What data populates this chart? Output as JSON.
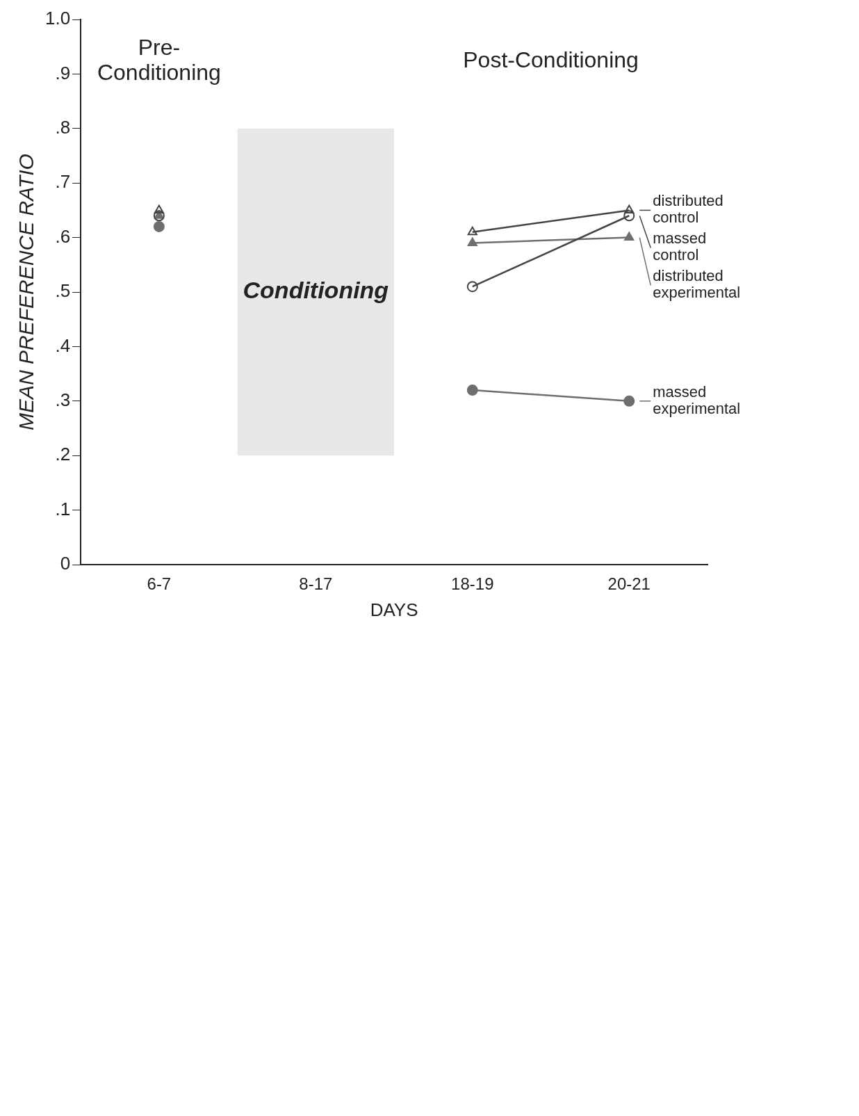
{
  "chart_data": {
    "type": "line",
    "xlabel": "DAYS",
    "ylabel": "MEAN PREFERENCE RATIO",
    "categories": [
      "6-7",
      "8-17",
      "18-19",
      "20-21"
    ],
    "ylim": [
      0,
      1
    ],
    "yticks": [
      {
        "value": 0,
        "label": "0"
      },
      {
        "value": 0.1,
        "label": ".1"
      },
      {
        "value": 0.2,
        "label": ".2"
      },
      {
        "value": 0.3,
        "label": ".3"
      },
      {
        "value": 0.4,
        "label": ".4"
      },
      {
        "value": 0.5,
        "label": ".5"
      },
      {
        "value": 0.6,
        "label": ".6"
      },
      {
        "value": 0.7,
        "label": ".7"
      },
      {
        "value": 0.8,
        "label": ".8"
      },
      {
        "value": 0.9,
        "label": ".9"
      },
      {
        "value": 1,
        "label": "1.0"
      }
    ],
    "grid": false,
    "legend": "right",
    "series": [
      {
        "name": "distributed control",
        "color": "#444444",
        "marker": "triangle",
        "values": [
          0.65,
          null,
          0.61,
          0.65
        ]
      },
      {
        "name": "massed control",
        "color": "#444444",
        "marker": "circle",
        "values": [
          0.64,
          null,
          0.51,
          0.64
        ]
      },
      {
        "name": "distributed experimental",
        "color": "#6e6e6e",
        "marker": "triangle",
        "values": [
          0.64,
          null,
          0.59,
          0.6
        ]
      },
      {
        "name": "massed experimental",
        "color": "#6e6e6e",
        "marker": "circle",
        "values": [
          0.62,
          null,
          0.32,
          0.3
        ]
      }
    ],
    "bands": [
      {
        "axis": "x",
        "from": "8-17",
        "to": "8-17",
        "label": "Conditioning",
        "color": "#222222"
      }
    ],
    "annotations": [
      "Pre-Conditioning",
      "Post-Conditioning"
    ]
  }
}
